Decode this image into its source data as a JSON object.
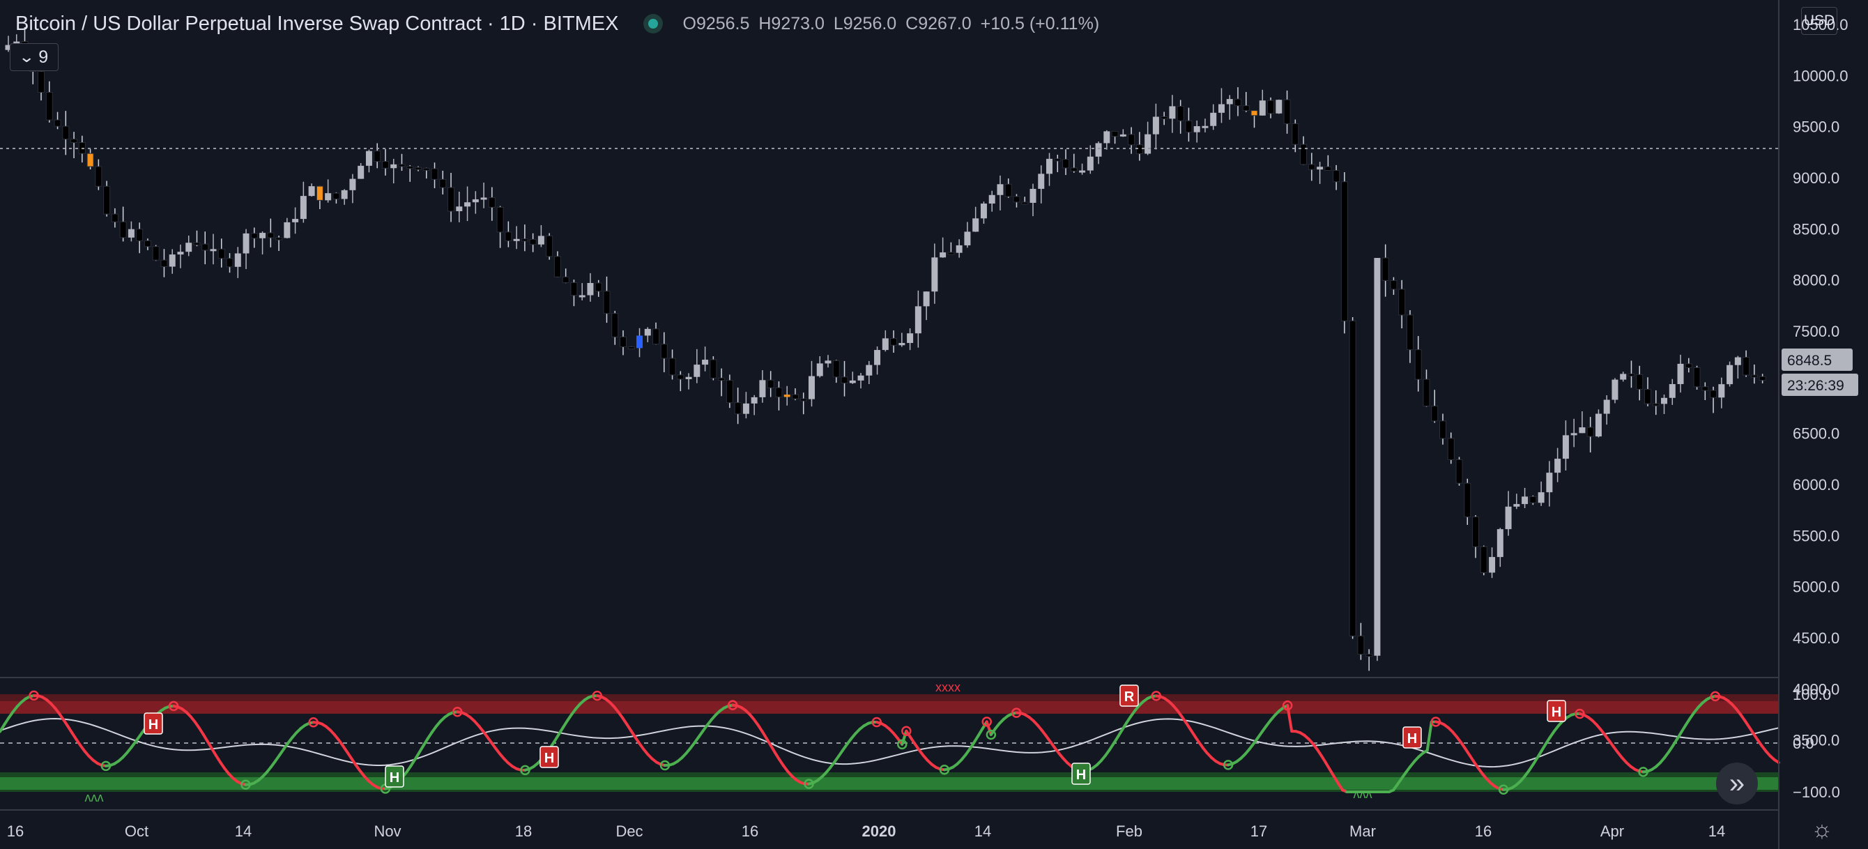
{
  "header": {
    "title": "Bitcoin / US Dollar Perpetual Inverse Swap Contract · 1D · BITMEX",
    "ohlc": {
      "o_label": "O",
      "o": "9256.5",
      "h_label": "H",
      "h": "9273.0",
      "l_label": "L",
      "l": "9256.0",
      "c_label": "C",
      "c": "9267.0",
      "change": "+10.5 (+0.11%)"
    },
    "indicator_count": "9",
    "currency": "USD"
  },
  "colors": {
    "background": "#131722",
    "candle_up": "#b2b5be",
    "candle_down": "#000000",
    "highlight_orange": "#f7931a",
    "highlight_blue": "#2962ff",
    "osc_up": "#4caf50",
    "osc_down": "#f23645",
    "grid_text": "#d1d4dc"
  },
  "price_axis": {
    "labels": [
      "10500.0",
      "10000.0",
      "9500.0",
      "9000.0",
      "8500.0",
      "8000.0",
      "7500.0",
      "7000.0",
      "6500.0",
      "6000.0",
      "5500.0",
      "5000.0",
      "4500.0",
      "4000.0",
      "3500.0"
    ],
    "last_price": "6848.5",
    "countdown": "23:26:39"
  },
  "osc_axis": {
    "labels": [
      "100.0",
      "0.0",
      "−100.0"
    ]
  },
  "time_axis": {
    "labels": [
      "16",
      "Oct",
      "14",
      "Nov",
      "18",
      "Dec",
      "16",
      "2020",
      "14",
      "Feb",
      "17",
      "Mar",
      "16",
      "Apr",
      "14"
    ]
  },
  "signals": {
    "h": "H",
    "r": "R",
    "x": "xxxx",
    "w": "ʌʌʌ"
  },
  "chart_data": {
    "type": "candlestick",
    "symbol": "BTCUSD",
    "exchange": "BITMEX",
    "interval": "1D",
    "price_range": [
      3300,
      10700
    ],
    "anchors": [
      [
        "16",
        10300
      ],
      [
        "Oct",
        8250
      ],
      [
        "14",
        8300
      ],
      [
        "Nov",
        9250
      ],
      [
        "18",
        8400
      ],
      [
        "Dec",
        7450
      ],
      [
        "16",
        6800
      ],
      [
        "2020",
        7200
      ],
      [
        "14",
        8750
      ],
      [
        "Feb",
        9400
      ],
      [
        "17",
        9800
      ],
      [
        "Mar",
        8600
      ],
      [
        "16",
        5300
      ],
      [
        "Apr",
        6900
      ],
      [
        "14",
        7050
      ]
    ],
    "last_price": 6848.5,
    "oscillator": {
      "range": [
        -130,
        130
      ],
      "zones": {
        "overbought": [
          60,
          100
        ],
        "oversold": [
          -100,
          -60
        ]
      },
      "zero_line": 0
    }
  }
}
